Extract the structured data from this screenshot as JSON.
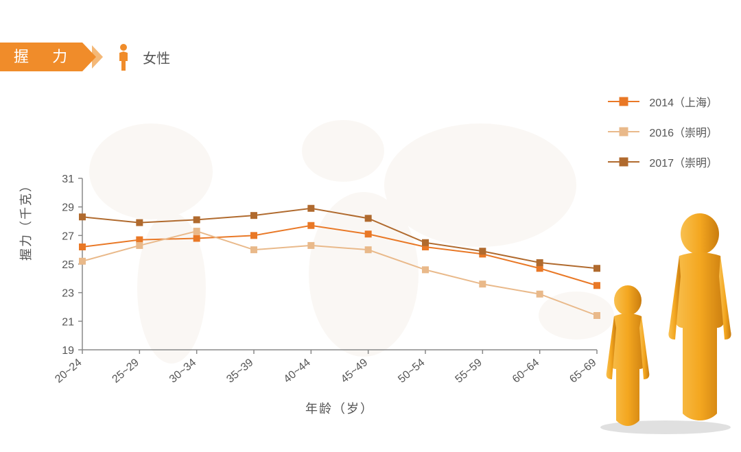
{
  "header": {
    "title": "握 力",
    "gender_label": "女性",
    "gender_icon_color": "#f08c2a"
  },
  "legend": {
    "items": [
      {
        "label": "2014（上海）",
        "color": "#e97826"
      },
      {
        "label": "2016（崇明）",
        "color": "#e9b98a"
      },
      {
        "label": "2017（崇明）",
        "color": "#b06a2e"
      }
    ]
  },
  "chart": {
    "type": "line",
    "y_label": "握力（千克）",
    "x_label": "年龄（岁）",
    "categories": [
      "20~24",
      "25~29",
      "30~34",
      "35~39",
      "40~44",
      "45~49",
      "50~54",
      "55~59",
      "60~64",
      "65~69"
    ],
    "ylim": [
      19,
      31
    ],
    "ytick_step": 2,
    "series": [
      {
        "name": "2014（上海）",
        "color": "#e97826",
        "values": [
          26.2,
          26.7,
          26.8,
          27.0,
          27.7,
          27.1,
          26.2,
          25.7,
          24.7,
          23.5
        ]
      },
      {
        "name": "2016（崇明）",
        "color": "#e9b98a",
        "values": [
          25.2,
          26.3,
          27.3,
          26.0,
          26.3,
          26.0,
          24.6,
          23.6,
          22.9,
          21.4
        ]
      },
      {
        "name": "2017（崇明）",
        "color": "#b06a2e",
        "values": [
          28.3,
          27.9,
          28.1,
          28.4,
          28.9,
          28.2,
          26.5,
          25.9,
          25.1,
          24.7
        ]
      }
    ],
    "axis_color": "#888888",
    "text_color": "#555555",
    "tick_fontsize": 16,
    "label_fontsize": 18,
    "line_width": 2,
    "marker_size": 9,
    "background_color": "#ffffff"
  },
  "colors": {
    "badge": "#f08c2a",
    "figure_main": "#f4a720",
    "figure_shadow": "#c97c0f"
  }
}
